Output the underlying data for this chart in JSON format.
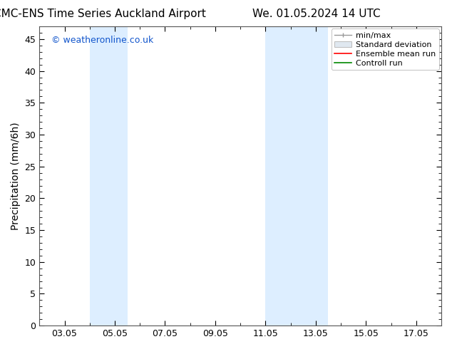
{
  "title_left": "CMC-ENS Time Series Auckland Airport",
  "title_right": "We. 01.05.2024 14 UTC",
  "ylabel": "Precipitation (mm/6h)",
  "ylim": [
    0,
    47
  ],
  "yticks": [
    0,
    5,
    10,
    15,
    20,
    25,
    30,
    35,
    40,
    45
  ],
  "x_min": 2.0,
  "x_max": 18.0,
  "xtick_labels": [
    "03.05",
    "05.05",
    "07.05",
    "09.05",
    "11.05",
    "13.05",
    "15.05",
    "17.05"
  ],
  "xtick_positions": [
    3,
    5,
    7,
    9,
    11,
    13,
    15,
    17
  ],
  "shaded_bands": [
    {
      "x_start": 4.0,
      "x_end": 5.5,
      "color": "#ddeeff"
    },
    {
      "x_start": 11.0,
      "x_end": 12.0,
      "color": "#ddeeff"
    },
    {
      "x_start": 12.0,
      "x_end": 13.5,
      "color": "#ddeeff"
    }
  ],
  "legend_labels": [
    "min/max",
    "Standard deviation",
    "Ensemble mean run",
    "Controll run"
  ],
  "legend_line_colors": [
    "#aaaaaa",
    "#cccccc",
    "#ff0000",
    "#008800"
  ],
  "watermark_text": "© weatheronline.co.uk",
  "watermark_color": "#1155cc",
  "bg_color": "#ffffff",
  "plot_bg_color": "#ffffff",
  "spine_color": "#555555",
  "tick_color": "#000000",
  "title_fontsize": 11,
  "axis_label_fontsize": 10,
  "tick_fontsize": 9,
  "legend_fontsize": 8
}
